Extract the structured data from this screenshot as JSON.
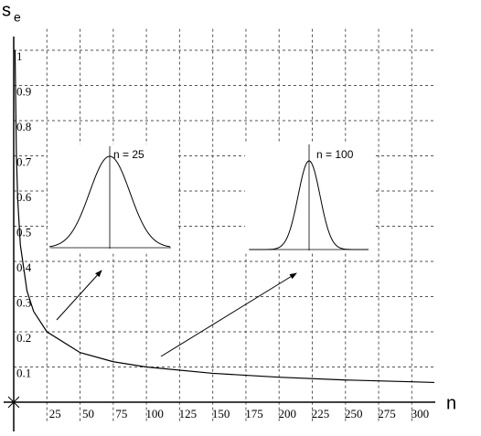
{
  "chart_data": {
    "type": "line",
    "y_label": "s",
    "y_label_subscript": "e",
    "x_label": "n",
    "annotations": [
      "n = 25",
      "n = 100"
    ],
    "x": [
      1,
      2,
      3,
      5,
      10,
      15,
      25,
      50,
      75,
      100,
      150,
      200,
      250,
      300,
      317
    ],
    "values": [
      1,
      0.707,
      0.577,
      0.447,
      0.316,
      0.258,
      0.2,
      0.141,
      0.115,
      0.1,
      0.082,
      0.071,
      0.063,
      0.058,
      0.056
    ],
    "color": "#000000",
    "xlim": [
      0,
      317
    ],
    "ylim": [
      0,
      1.04
    ],
    "xticks": [
      25,
      50,
      75,
      100,
      125,
      150,
      175,
      200,
      225,
      250,
      275,
      300
    ],
    "yticks": [
      0.1,
      0.2,
      0.3,
      0.4,
      0.5,
      0.6,
      0.7,
      0.8,
      0.9,
      1
    ],
    "grid": true
  }
}
